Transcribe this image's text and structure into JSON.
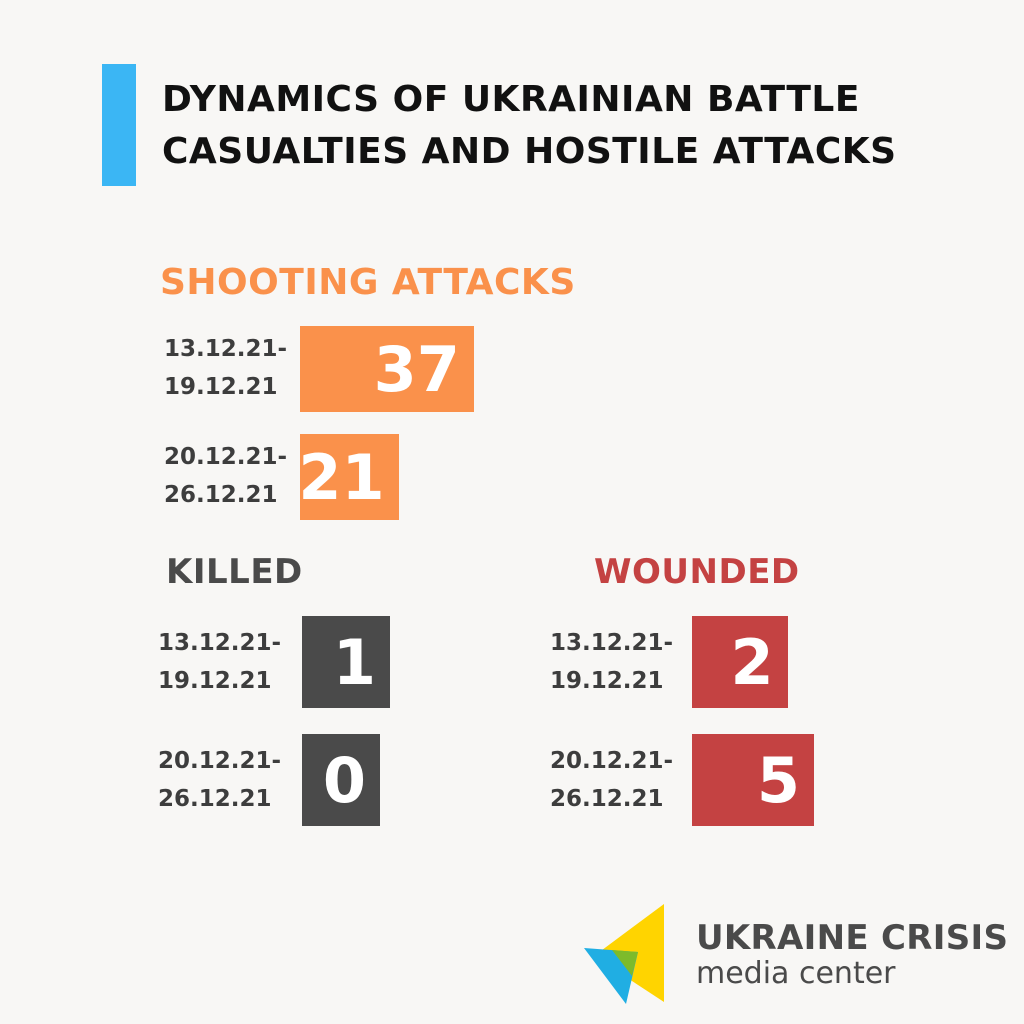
{
  "title": "DYNAMICS OF UKRAINIAN BATTLE\nCASUALTIES AND HOSTILE ATTACKS",
  "colors": {
    "title_bar": "#3bb6f4",
    "shooting": "#fa914b",
    "killed": "#4a4a4a",
    "wounded": "#c44242"
  },
  "chart_data": [
    {
      "type": "bar",
      "title": "SHOOTING  ATTACKS",
      "categories": [
        "13.12.21-\n19.12.21",
        "20.12.21-\n26.12.21"
      ],
      "values": [
        37,
        21
      ]
    },
    {
      "type": "bar",
      "title": "KILLED",
      "categories": [
        "13.12.21-\n19.12.21",
        "20.12.21-\n26.12.21"
      ],
      "values": [
        1,
        0
      ]
    },
    {
      "type": "bar",
      "title": "WOUNDED",
      "categories": [
        "13.12.21-\n19.12.21",
        "20.12.21-\n26.12.21"
      ],
      "values": [
        2,
        5
      ]
    }
  ],
  "logo": {
    "line1": "UKRAINE CRISIS",
    "line2": "media center"
  }
}
